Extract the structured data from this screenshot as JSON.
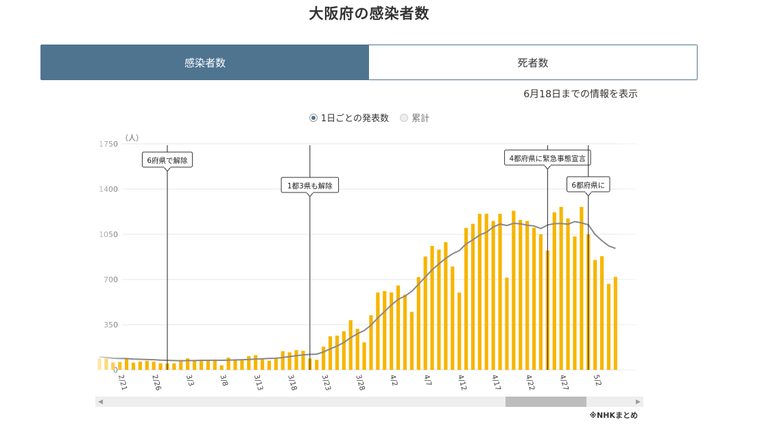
{
  "page": {
    "title": "大阪府の感染者数",
    "tabs": [
      {
        "label": "感染者数",
        "active": true
      },
      {
        "label": "死者数",
        "active": false
      }
    ],
    "updated_text": "6月18日までの情報を表示",
    "radios": [
      {
        "label": "1日ごとの発表数",
        "selected": true
      },
      {
        "label": "累計",
        "selected": false
      }
    ],
    "source": "※NHKまとめ",
    "colors": {
      "bar": "#f7b500",
      "line": "#888888",
      "tab_active": "#4f7490"
    }
  },
  "chart_data": {
    "type": "bar",
    "unit_label": "（人）",
    "ylim": [
      0,
      1750
    ],
    "yticks": [
      "0",
      "350",
      "700",
      "1050",
      "1400",
      "1750"
    ],
    "grid": true,
    "x_start": "2021-02-18",
    "categories": [
      "2/18",
      "2/19",
      "2/20",
      "2/21",
      "2/22",
      "2/23",
      "2/24",
      "2/25",
      "2/26",
      "2/27",
      "2/28",
      "3/1",
      "3/2",
      "3/3",
      "3/4",
      "3/5",
      "3/6",
      "3/7",
      "3/8",
      "3/9",
      "3/10",
      "3/11",
      "3/12",
      "3/13",
      "3/14",
      "3/15",
      "3/16",
      "3/17",
      "3/18",
      "3/19",
      "3/20",
      "3/21",
      "3/22",
      "3/23",
      "3/24",
      "3/25",
      "3/26",
      "3/27",
      "3/28",
      "3/29",
      "3/30",
      "3/31",
      "4/1",
      "4/2",
      "4/3",
      "4/4",
      "4/5",
      "4/6",
      "4/7",
      "4/8",
      "4/9",
      "4/10",
      "4/11",
      "4/12",
      "4/13",
      "4/14",
      "4/15",
      "4/16",
      "4/17",
      "4/18",
      "4/19",
      "4/20",
      "4/21",
      "4/22",
      "4/23",
      "4/24",
      "4/25",
      "4/26",
      "4/27",
      "4/28",
      "4/29",
      "4/30",
      "5/1",
      "5/2",
      "5/3",
      "5/4",
      "5/5"
    ],
    "xtick_labels": [
      "2/16",
      "2/21",
      "2/26",
      "3/3",
      "3/8",
      "3/13",
      "3/18",
      "3/23",
      "3/28",
      "4/2",
      "4/7",
      "4/12",
      "4/17",
      "4/22",
      "4/27",
      "5/2"
    ],
    "series": [
      {
        "type": "bar",
        "values": [
          88,
          88,
          57,
          61,
          90,
          56,
          65,
          70,
          64,
          51,
          50,
          51,
          75,
          89,
          71,
          79,
          70,
          72,
          35,
          95,
          78,
          78,
          107,
          114,
          89,
          71,
          86,
          145,
          136,
          153,
          148,
          88,
          78,
          180,
          260,
          265,
          299,
          385,
          318,
          213,
          423,
          599,
          610,
          600,
          654,
          582,
          449,
          719,
          878,
          960,
          931,
          989,
          800,
          599,
          1099,
          1131,
          1208,
          1209,
          1153,
          1209,
          714,
          1232,
          1161,
          1153,
          1101,
          1050,
          924,
          1220,
          1262,
          1172,
          1033,
          1262,
          1050,
          851,
          880,
          666,
          720
        ]
      },
      {
        "type": "line",
        "values": [
          100,
          96,
          90,
          88,
          88,
          84,
          82,
          80,
          79,
          76,
          74,
          72,
          71,
          72,
          72,
          74,
          74,
          75,
          74,
          76,
          77,
          79,
          81,
          84,
          86,
          89,
          90,
          96,
          103,
          110,
          116,
          120,
          122,
          139,
          163,
          185,
          212,
          249,
          280,
          305,
          347,
          403,
          453,
          503,
          546,
          571,
          608,
          663,
          720,
          775,
          821,
          864,
          899,
          924,
          975,
          1007,
          1044,
          1066,
          1107,
          1129,
          1118,
          1135,
          1131,
          1120,
          1114,
          1094,
          1122,
          1132,
          1134,
          1128,
          1148,
          1138,
          1123,
          1048,
          1000,
          960,
          940
        ]
      }
    ],
    "annotations": [
      {
        "date": "2/28",
        "text": "6府県で解除"
      },
      {
        "date": "3/21",
        "text": "1都3県も解除"
      },
      {
        "date": "4/25",
        "text": "4都府県に緊急事態宣言"
      },
      {
        "date": "5/1",
        "text": "6都府県に"
      }
    ]
  }
}
